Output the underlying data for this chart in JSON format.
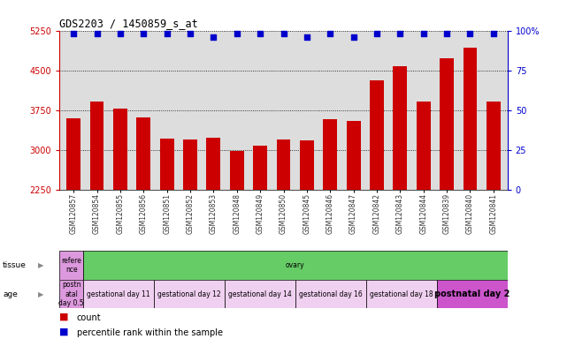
{
  "title": "GDS2203 / 1450859_s_at",
  "samples": [
    "GSM120857",
    "GSM120854",
    "GSM120855",
    "GSM120856",
    "GSM120851",
    "GSM120852",
    "GSM120853",
    "GSM120848",
    "GSM120849",
    "GSM120850",
    "GSM120845",
    "GSM120846",
    "GSM120847",
    "GSM120842",
    "GSM120843",
    "GSM120844",
    "GSM120839",
    "GSM120840",
    "GSM120841"
  ],
  "counts": [
    3600,
    3920,
    3780,
    3620,
    3220,
    3200,
    3230,
    2990,
    3090,
    3200,
    3180,
    3580,
    3540,
    4320,
    4580,
    3920,
    4720,
    4920,
    3920
  ],
  "percentiles": [
    98,
    98,
    98,
    98,
    98,
    98,
    96,
    98,
    98,
    98,
    96,
    98,
    96,
    98,
    98,
    98,
    98,
    98,
    98
  ],
  "ylim_left": [
    2250,
    5250
  ],
  "ylim_right": [
    0,
    100
  ],
  "yticks_left": [
    2250,
    3000,
    3750,
    4500,
    5250
  ],
  "yticks_right": [
    0,
    25,
    50,
    75,
    100
  ],
  "bar_color": "#cc0000",
  "percentile_color": "#0000cc",
  "grid_color": "#000000",
  "tissue_segments": [
    {
      "text": "refere\nnce",
      "color": "#dd99dd",
      "span": 1
    },
    {
      "text": "ovary",
      "color": "#66cc66",
      "span": 18
    }
  ],
  "age_segments": [
    {
      "text": "postn\natal\nday 0.5",
      "color": "#dd99dd",
      "span": 1
    },
    {
      "text": "gestational day 11",
      "color": "#f0d0f0",
      "span": 3
    },
    {
      "text": "gestational day 12",
      "color": "#f0d0f0",
      "span": 3
    },
    {
      "text": "gestational day 14",
      "color": "#f0d0f0",
      "span": 3
    },
    {
      "text": "gestational day 16",
      "color": "#f0d0f0",
      "span": 3
    },
    {
      "text": "gestational day 18",
      "color": "#f0d0f0",
      "span": 3
    },
    {
      "text": "postnatal day 2",
      "color": "#cc55cc",
      "span": 3
    }
  ],
  "legend": [
    {
      "color": "#cc0000",
      "label": "count"
    },
    {
      "color": "#0000cc",
      "label": "percentile rank within the sample"
    }
  ],
  "background_color": "#ffffff",
  "plot_bg_color": "#dddddd"
}
